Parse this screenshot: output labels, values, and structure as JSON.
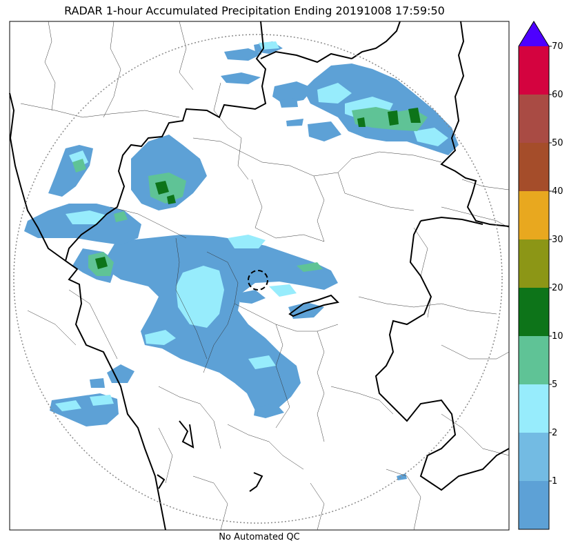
{
  "map": {
    "title": "RADAR 1-hour Accumulated Precipitation Ending 20191008 17:59:50",
    "footer": "No Automated QC"
  },
  "colorbar": {
    "labels": [
      "1",
      "2",
      "5",
      "10",
      "20",
      "30",
      "40",
      "50",
      "60",
      "70"
    ],
    "colors": [
      "#5da1d6",
      "#73bbe3",
      "#97ecfc",
      "#5fc396",
      "#0d7419",
      "#8c9616",
      "#e8a81f",
      "#a54d2a",
      "#a94b44",
      "#d4033f"
    ],
    "extend_color": "#4d00ff"
  },
  "colors": {
    "precip_light": "#5da1d6",
    "precip_medium": "#97ecfc",
    "precip_heavy": "#5fc396",
    "precip_peak": "#0d7419",
    "border": "#000000"
  }
}
